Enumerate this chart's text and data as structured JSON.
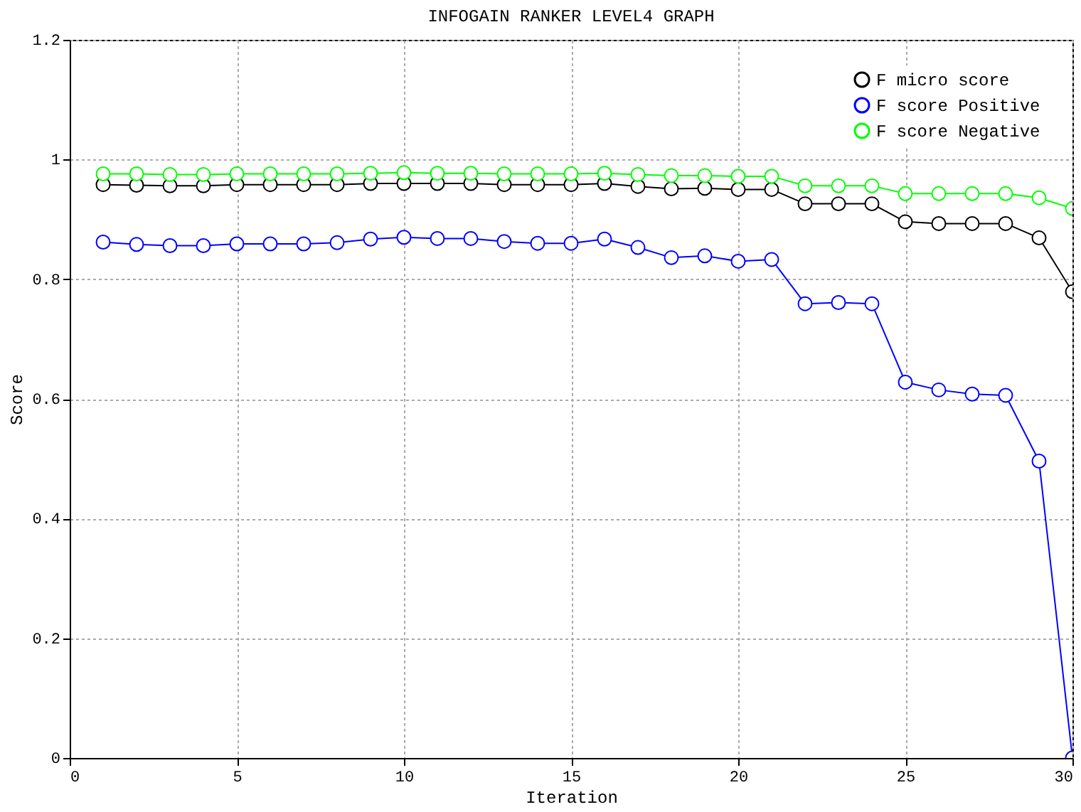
{
  "chart_data": {
    "type": "line",
    "title": "INFOGAIN RANKER LEVEL4 GRAPH",
    "xlabel": "Iteration",
    "ylabel": "Score",
    "x": [
      1,
      2,
      3,
      4,
      5,
      6,
      7,
      8,
      9,
      10,
      11,
      12,
      13,
      14,
      15,
      16,
      17,
      18,
      19,
      20,
      21,
      22,
      23,
      24,
      25,
      26,
      27,
      28,
      29,
      30
    ],
    "series": [
      {
        "name": "F micro score",
        "color": "#000000",
        "values": [
          0.958,
          0.957,
          0.956,
          0.956,
          0.958,
          0.958,
          0.958,
          0.958,
          0.96,
          0.96,
          0.96,
          0.96,
          0.958,
          0.958,
          0.958,
          0.96,
          0.955,
          0.951,
          0.952,
          0.95,
          0.95,
          0.926,
          0.926,
          0.926,
          0.896,
          0.893,
          0.893,
          0.893,
          0.869,
          0.779
        ]
      },
      {
        "name": "F score Positive",
        "color": "#0000ff",
        "values": [
          0.862,
          0.858,
          0.856,
          0.856,
          0.859,
          0.859,
          0.859,
          0.861,
          0.867,
          0.87,
          0.868,
          0.868,
          0.863,
          0.86,
          0.86,
          0.867,
          0.853,
          0.836,
          0.839,
          0.83,
          0.833,
          0.759,
          0.761,
          0.759,
          0.628,
          0.615,
          0.608,
          0.606,
          0.496,
          0.0
        ]
      },
      {
        "name": "F score Negative",
        "color": "#00ff00",
        "values": [
          0.976,
          0.976,
          0.975,
          0.975,
          0.976,
          0.976,
          0.976,
          0.976,
          0.977,
          0.978,
          0.977,
          0.977,
          0.976,
          0.976,
          0.976,
          0.977,
          0.975,
          0.973,
          0.973,
          0.972,
          0.972,
          0.956,
          0.956,
          0.956,
          0.943,
          0.943,
          0.943,
          0.943,
          0.936,
          0.918
        ]
      }
    ],
    "xlim": [
      0,
      30
    ],
    "xticks": [
      0,
      5,
      10,
      15,
      20,
      25,
      30
    ],
    "ylim": [
      0,
      1.2
    ],
    "yticks": [
      0,
      0.2,
      0.4,
      0.6,
      0.8,
      1,
      1.2
    ],
    "grid": true,
    "legend": "top right",
    "marker": "circle",
    "line_style": "solid"
  }
}
